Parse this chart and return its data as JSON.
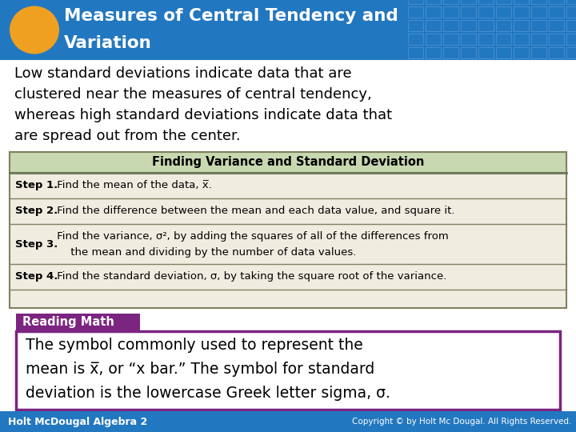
{
  "title_line1": "Measures of Central Tendency and",
  "title_line2": "Variation",
  "title_bg": "#2278c0",
  "title_text_color": "#ffffff",
  "ellipse_color": "#f0a020",
  "body_text_lines": [
    "Low standard deviations indicate data that are",
    "clustered near the measures of central tendency,",
    "whereas high standard deviations indicate data that",
    "are spread out from the center."
  ],
  "body_bg": "#ffffff",
  "table_title": "Finding Variance and Standard Deviation",
  "table_title_bg": "#c8d8b0",
  "table_title_text": "#000000",
  "table_border_color": "#808060",
  "table_row_bg": "#f0ece0",
  "table_title_line_color": "#507050",
  "step1_bold": "Step 1.",
  "step1_text": " Find the mean of the data, x̅.",
  "step2_bold": "Step 2.",
  "step2_text": " Find the difference between the mean and each data value, and square it.",
  "step3_bold": "Step 3.",
  "step3_text1": " Find the variance, σ², by adding the squares of all of the differences from",
  "step3_text2": "     the mean and dividing by the number of data values.",
  "step4_bold": "Step 4.",
  "step4_text": " Find the standard deviation, σ, by taking the square root of the variance.",
  "reading_math_bg": "#7b2580",
  "reading_math_text": "Reading Math",
  "reading_math_text_color": "#ffffff",
  "reading_box_border": "#7b2580",
  "reading_body_lines": [
    "The symbol commonly used to represent the",
    "mean is x̅, or “x bar.” The symbol for standard",
    "deviation is the lowercase Greek letter sigma, σ."
  ],
  "footer_bg": "#2278c0",
  "footer_left": "Holt McDougal Algebra 2",
  "footer_right": "Copyright © by Holt Mc Dougal. All Rights Reserved.",
  "footer_text_color": "#ffffff",
  "grid_line_color": "#4a90d0"
}
